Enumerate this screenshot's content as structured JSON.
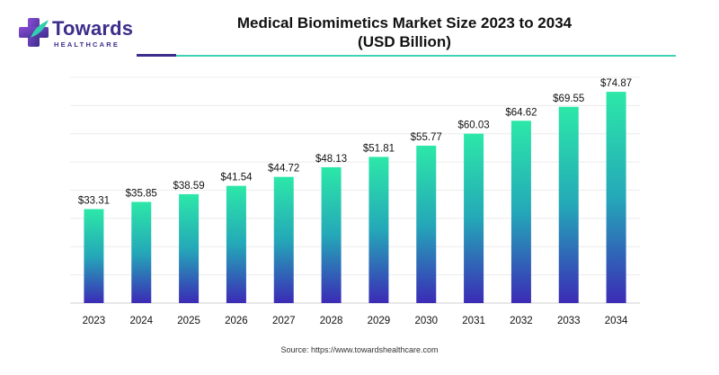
{
  "brand": {
    "name": "Towards",
    "sub": "HEALTHCARE",
    "logo_icon": "medical-cross-icon",
    "colors": {
      "primary": "#3d2e8c",
      "accent": "#2fcfb0"
    }
  },
  "source": "Source: https://www.towardshealthcare.com",
  "chart_data": {
    "type": "bar",
    "title": [
      "Medical Biomimetics Market Size 2023 to 2034",
      "(USD Billion)"
    ],
    "xlabel": "",
    "ylabel": "",
    "categories": [
      "2023",
      "2024",
      "2025",
      "2026",
      "2027",
      "2028",
      "2029",
      "2030",
      "2031",
      "2032",
      "2033",
      "2034"
    ],
    "values": [
      33.31,
      35.85,
      38.59,
      41.54,
      44.72,
      48.13,
      51.81,
      55.77,
      60.03,
      64.62,
      69.55,
      74.87
    ],
    "value_labels": [
      "$33.31",
      "$35.85",
      "$38.59",
      "$41.54",
      "$44.72",
      "$48.13",
      "$51.81",
      "$55.77",
      "$60.03",
      "$64.62",
      "$69.55",
      "$74.87"
    ],
    "ylim": [
      0,
      80
    ],
    "grid": true,
    "legend": "none",
    "bar_gradient": {
      "top": "#2ce8a8",
      "middle": "#24a8b8",
      "bottom": "#3b2bb6"
    }
  }
}
